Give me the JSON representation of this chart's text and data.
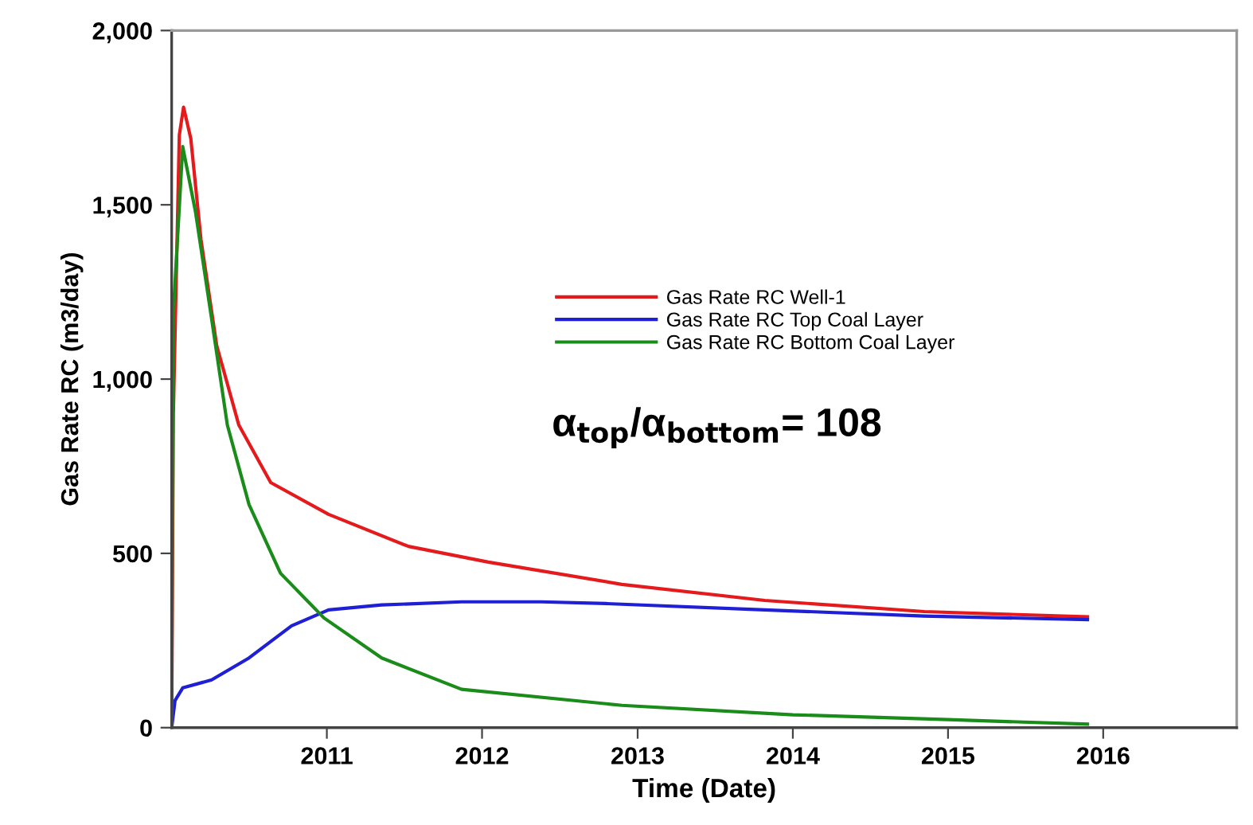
{
  "chart_data": {
    "type": "line",
    "xlabel": "Time (Date)",
    "ylabel": "Gas Rate RC (m3/day)",
    "annotations": [
      "α$_{top}$/α$_{bottom}$= 108"
    ],
    "xlim": [
      "2010-01-01",
      "2016-11-10"
    ],
    "xticks": [
      "2011",
      "2012",
      "2013",
      "2014",
      "2015",
      "2016"
    ],
    "ylim": [
      0,
      2000
    ],
    "yticks": [
      {
        "value": 0,
        "label": "0"
      },
      {
        "value": 500,
        "label": "500"
      },
      {
        "value": 1000,
        "label": "1,000"
      },
      {
        "value": 1500,
        "label": "1,500"
      },
      {
        "value": 2000,
        "label": "2,000"
      }
    ],
    "grid": false,
    "legend": "top right",
    "marker": "none",
    "line_style": "solid",
    "series": [
      {
        "name": "Gas Rate RC Well-1",
        "color": "#e41a1c",
        "x": [
          "2010-01-01",
          "2010-01-05",
          "2010-01-19",
          "2010-01-29",
          "2010-02-15",
          "2010-03-11",
          "2010-04-17",
          "2010-06-08",
          "2010-08-22",
          "2011-01-05",
          "2011-07-12",
          "2012-01-16",
          "2012-11-25",
          "2013-10-27",
          "2014-11-06",
          "2015-11-25"
        ],
        "values": [
          0,
          900,
          1700,
          1780,
          1690,
          1400,
          1096,
          868,
          703,
          612,
          520,
          475,
          411,
          365,
          333,
          318
        ]
      },
      {
        "name": "Gas Rate RC Top Coal Layer",
        "color": "#1f1fd6",
        "x": [
          "2010-01-01",
          "2010-01-09",
          "2010-01-27",
          "2010-04-05",
          "2010-07-02",
          "2010-10-10",
          "2011-01-05",
          "2011-05-10",
          "2011-11-14",
          "2012-05-19",
          "2012-10-18",
          "2013-10-27",
          "2014-11-06",
          "2015-11-25"
        ],
        "values": [
          0,
          78,
          114,
          137,
          200,
          292,
          338,
          352,
          361,
          361,
          356,
          338,
          320,
          310
        ]
      },
      {
        "name": "Gas Rate RC Bottom Coal Layer",
        "color": "#1a8c1a",
        "x": [
          "2010-01-01",
          "2010-01-04",
          "2010-01-27",
          "2010-02-26",
          "2010-04-05",
          "2010-05-12",
          "2010-07-02",
          "2010-09-14",
          "2010-12-25",
          "2011-05-10",
          "2011-11-14",
          "2012-11-25",
          "2014-01-01",
          "2015-01-01",
          "2015-11-25"
        ],
        "values": [
          0,
          1170,
          1667,
          1480,
          1173,
          868,
          640,
          443,
          315,
          200,
          110,
          64,
          37,
          23,
          10
        ]
      }
    ]
  }
}
